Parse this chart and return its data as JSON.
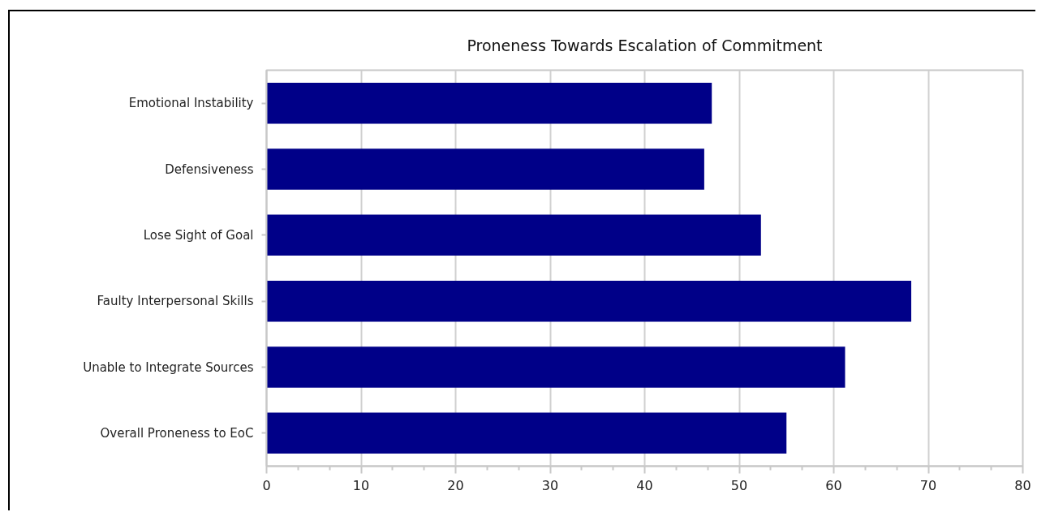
{
  "chart_data": {
    "type": "bar",
    "orientation": "horizontal",
    "title": "Proneness Towards Escalation of Commitment",
    "categories": [
      "Emotional Instability",
      "Defensiveness",
      "Lose Sight of Goal",
      "Faulty Interpersonal Skills",
      "Unable to Integrate Sources",
      "Overall Proneness to EoC"
    ],
    "values": [
      47.1,
      46.3,
      52.3,
      68.2,
      61.2,
      55.0
    ],
    "color": "#000088",
    "xlim": [
      0,
      80
    ],
    "xticks": [
      0,
      10,
      20,
      30,
      40,
      50,
      60,
      70,
      80
    ],
    "grid": "x"
  }
}
